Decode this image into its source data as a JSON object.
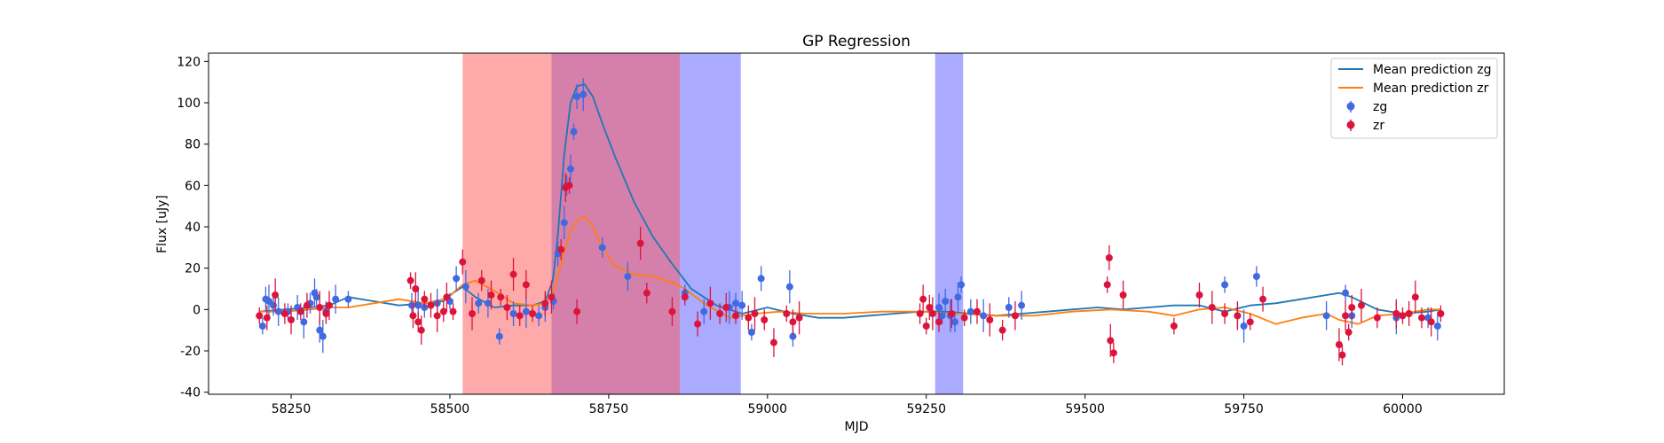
{
  "chart_data": {
    "type": "scatter",
    "title": "GP Regression",
    "xlabel": "MJD",
    "ylabel": "Flux [uJy]",
    "xlim": [
      58120,
      60160
    ],
    "ylim": [
      -41,
      124
    ],
    "xticks": [
      58250,
      58500,
      58750,
      59000,
      59250,
      59500,
      59750,
      60000
    ],
    "yticks": [
      -40,
      -20,
      0,
      20,
      40,
      60,
      80,
      100,
      120
    ],
    "legend_position": "top-right",
    "colors": {
      "zg": "#4169e1",
      "zr": "#dc143c",
      "mean_zg": "#1f77b4",
      "mean_zr": "#ff7f0e",
      "span_red": "#ff5555",
      "span_blue": "#5555ff"
    },
    "shaded_regions": [
      {
        "x0": 58520,
        "x1": 58660,
        "color": "red"
      },
      {
        "x0": 58660,
        "x1": 58862,
        "color": "blue"
      },
      {
        "x0": 58660,
        "x1": 58862,
        "color": "red"
      },
      {
        "x0": 58862,
        "x1": 58958,
        "color": "blue"
      },
      {
        "x0": 59264,
        "x1": 59308,
        "color": "blue"
      }
    ],
    "series": [
      {
        "name": "Mean prediction zg",
        "kind": "line",
        "x": [
          58200,
          58240,
          58280,
          58310,
          58340,
          58380,
          58420,
          58460,
          58490,
          58505,
          58520,
          58540,
          58570,
          58600,
          58630,
          58650,
          58662,
          58670,
          58680,
          58690,
          58700,
          58712,
          58725,
          58740,
          58760,
          58790,
          58820,
          58850,
          58880,
          58920,
          58960,
          59000,
          59040,
          59080,
          59120,
          59160,
          59200,
          59240,
          59280,
          59320,
          59360,
          59400,
          59440,
          59480,
          59520,
          59560,
          59600,
          59640,
          59680,
          59720,
          59760,
          59800,
          59840,
          59880,
          59900,
          59920,
          59960,
          60000,
          60040,
          60060
        ],
        "y": [
          -1,
          0,
          1,
          2,
          6,
          4,
          2,
          3,
          4,
          8,
          11,
          6,
          1,
          2,
          2,
          4,
          14,
          36,
          75,
          100,
          108,
          109,
          103,
          90,
          74,
          52,
          35,
          22,
          10,
          2,
          -2,
          1,
          -2,
          -4,
          -4,
          -3,
          -2,
          -1,
          -1,
          -2,
          -3,
          -2,
          -1,
          0,
          1,
          0,
          1,
          2,
          2,
          -1,
          2,
          3,
          5,
          7,
          8,
          6,
          0,
          -2,
          -1,
          0
        ]
      },
      {
        "name": "Mean prediction zr",
        "kind": "line",
        "x": [
          58200,
          58240,
          58280,
          58310,
          58340,
          58380,
          58420,
          58460,
          58490,
          58505,
          58520,
          58540,
          58570,
          58600,
          58630,
          58650,
          58662,
          58670,
          58680,
          58690,
          58700,
          58712,
          58725,
          58740,
          58760,
          58790,
          58820,
          58850,
          58870,
          58900,
          58940,
          58980,
          59020,
          59060,
          59120,
          59180,
          59240,
          59300,
          59360,
          59420,
          59480,
          59540,
          59600,
          59640,
          59680,
          59720,
          59760,
          59800,
          59840,
          59880,
          59900,
          59930,
          59960,
          60000,
          60040,
          60060
        ],
        "y": [
          -1,
          -1,
          0,
          1,
          1,
          3,
          5,
          3,
          5,
          8,
          12,
          14,
          9,
          3,
          2,
          3,
          8,
          16,
          28,
          38,
          43,
          45,
          40,
          30,
          21,
          17,
          16,
          13,
          10,
          3,
          -4,
          -2,
          -1,
          -2,
          -2,
          -1,
          -1,
          -2,
          -3,
          -3,
          -1,
          0,
          -1,
          -3,
          0,
          1,
          -2,
          -7,
          -4,
          -2,
          -5,
          -7,
          -3,
          -2,
          0,
          0
        ]
      },
      {
        "name": "zg",
        "kind": "scatter",
        "x": [
          58205,
          58210,
          58215,
          58222,
          58230,
          58245,
          58260,
          58270,
          58280,
          58287,
          58290,
          58295,
          58300,
          58305,
          58320,
          58340,
          58440,
          58450,
          58460,
          58480,
          58500,
          58510,
          58525,
          58545,
          58560,
          58578,
          58600,
          58620,
          58640,
          58650,
          58663,
          58670,
          58680,
          58684,
          58690,
          58695,
          58700,
          58710,
          58740,
          58780,
          58870,
          58900,
          58940,
          58950,
          58960,
          58975,
          58990,
          59035,
          59040,
          59270,
          59275,
          59280,
          59288,
          59295,
          59300,
          59305,
          59320,
          59340,
          59380,
          59400,
          59720,
          59740,
          59750,
          59770,
          59880,
          59910,
          59920,
          59990,
          60040,
          60055
        ],
        "y": [
          -8,
          5,
          4,
          2,
          -1,
          -1,
          1,
          -6,
          3,
          8,
          6,
          -10,
          -13,
          -1,
          5,
          5,
          2,
          2,
          1,
          3,
          4,
          15,
          11,
          3,
          3,
          -13,
          -2,
          -1,
          -3,
          1,
          4,
          27,
          42,
          60,
          68,
          86,
          103,
          104,
          30,
          16,
          8,
          -1,
          1,
          3,
          2,
          -11,
          15,
          11,
          -13,
          1,
          -3,
          4,
          -3,
          -6,
          6,
          12,
          -1,
          -3,
          1,
          2,
          12,
          -3,
          -8,
          16,
          -3,
          8,
          -3,
          -4,
          -4,
          -8
        ]
      },
      {
        "name": "zr",
        "kind": "scatter",
        "x": [
          58200,
          58212,
          58225,
          58240,
          58250,
          58265,
          58275,
          58295,
          58305,
          58310,
          58438,
          58442,
          58446,
          58450,
          58455,
          58460,
          58470,
          58480,
          58490,
          58495,
          58505,
          58520,
          58535,
          58550,
          58565,
          58580,
          58590,
          58600,
          58610,
          58620,
          58630,
          58650,
          58660,
          58675,
          58682,
          58688,
          58700,
          58800,
          58810,
          58850,
          58870,
          58890,
          58910,
          58925,
          58935,
          58950,
          58970,
          58980,
          58995,
          59010,
          59030,
          59040,
          59050,
          59240,
          59245,
          59250,
          59255,
          59260,
          59270,
          59290,
          59310,
          59330,
          59350,
          59370,
          59390,
          59535,
          59538,
          59540,
          59545,
          59560,
          59640,
          59680,
          59700,
          59720,
          59740,
          59760,
          59780,
          59900,
          59905,
          59910,
          59915,
          59920,
          59935,
          59960,
          59990,
          60000,
          60010,
          60020,
          60030,
          60045,
          60060
        ],
        "y": [
          -3,
          -4,
          7,
          -2,
          -5,
          -1,
          2,
          1,
          -2,
          2,
          14,
          -3,
          10,
          -6,
          -10,
          5,
          2,
          -3,
          -1,
          6,
          -1,
          23,
          -2,
          14,
          7,
          6,
          1,
          17,
          -3,
          12,
          -2,
          3,
          6,
          29,
          59,
          60,
          -1,
          32,
          8,
          -1,
          6,
          -7,
          3,
          -2,
          1,
          -3,
          -4,
          -2,
          -5,
          -16,
          -2,
          -6,
          -4,
          -2,
          5,
          -8,
          1,
          -2,
          -6,
          -2,
          -4,
          -1,
          -5,
          -10,
          -3,
          12,
          25,
          -15,
          -21,
          7,
          -8,
          7,
          1,
          -2,
          -3,
          -6,
          5,
          -17,
          -22,
          -3,
          -11,
          1,
          2,
          -4,
          -2,
          -3,
          -2,
          6,
          -4,
          -6,
          -2
        ]
      }
    ]
  }
}
